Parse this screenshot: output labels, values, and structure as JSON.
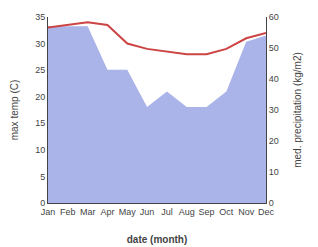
{
  "chart_data": {
    "type": "line",
    "xlabel": "date (month)",
    "ylabel": "max temp (C)",
    "y2label": "med. precipitation (kg/m2)",
    "categories": [
      "Jan",
      "Feb",
      "Mar",
      "Apr",
      "May",
      "Jun",
      "Jul",
      "Aug",
      "Sep",
      "Oct",
      "Nov",
      "Dec"
    ],
    "series": [
      {
        "type": "area",
        "axis": "y2",
        "color": "#aab4e8",
        "values": [
          57.0,
          57.0,
          57.0,
          43.0,
          43.0,
          31.0,
          36.0,
          31.0,
          31.0,
          36.0,
          52.0,
          54.0
        ]
      },
      {
        "type": "line",
        "color": "#cc4444",
        "values": [
          33.0,
          33.5,
          34.0,
          33.5,
          30.0,
          29.0,
          28.5,
          28.0,
          28.0,
          29.0,
          31.0,
          32.0
        ]
      }
    ],
    "ylim": [
      0,
      35
    ],
    "yticks": [
      0,
      5,
      10,
      15,
      20,
      25,
      30,
      35
    ],
    "y2lim": [
      0,
      60
    ],
    "y2ticks": [
      0,
      10,
      20,
      30,
      40,
      50,
      60
    ],
    "grid": false
  }
}
